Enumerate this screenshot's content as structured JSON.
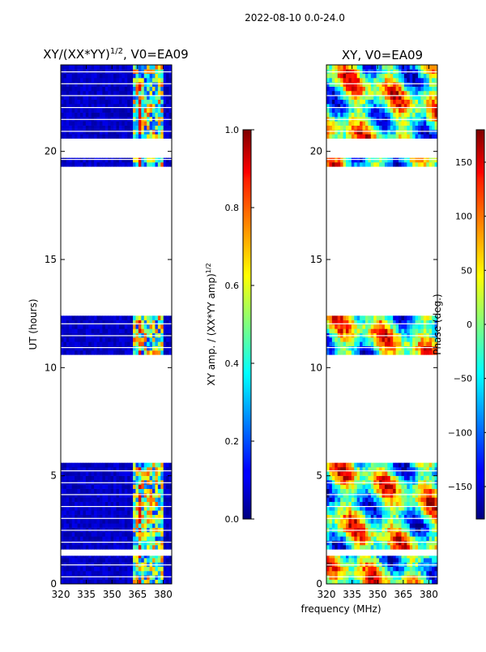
{
  "figure_title": "2022-08-10 0.0-24.0",
  "colors": {
    "empty_stripe": "#ffffff",
    "dark_blue": "#000080",
    "frame": "#000000"
  },
  "chart_data": [
    {
      "type": "heatmap",
      "name": "amplitude",
      "title": "XY/(XX*YY)",
      "title_exp": "1/2",
      "title_suffix": ", V0=EA09",
      "xlabel": "",
      "ylabel": "UT (hours)",
      "xlim": [
        320,
        385
      ],
      "ylim": [
        0,
        24
      ],
      "xticks": [
        "320",
        "335",
        "350",
        "365",
        "380"
      ],
      "xtick_values": [
        320,
        335,
        350,
        365,
        380
      ],
      "yticks": [
        "0",
        "5",
        "10",
        "15",
        "20"
      ],
      "ytick_values": [
        0,
        5,
        10,
        15,
        20
      ],
      "data_time_ranges_hours": [
        [
          0.0,
          1.3
        ],
        [
          1.6,
          5.6
        ],
        [
          10.6,
          12.4
        ],
        [
          19.3,
          19.7
        ],
        [
          20.6,
          24.0
        ]
      ],
      "colorbar": {
        "label": "XY amp. / (XX*YY amp)",
        "label_exp": "1/2",
        "range": [
          0.0,
          1.0
        ],
        "ticks": [
          "0.0",
          "0.2",
          "0.4",
          "0.6",
          "0.8",
          "1.0"
        ],
        "tick_values": [
          0.0,
          0.2,
          0.4,
          0.6,
          0.8,
          1.0
        ],
        "colormap": "jet"
      }
    },
    {
      "type": "heatmap",
      "name": "phase",
      "title": "XY, V0=EA09",
      "xlabel": "frequency (MHz)",
      "ylabel": "",
      "xlim": [
        320,
        385
      ],
      "ylim": [
        0,
        24
      ],
      "xticks": [
        "320",
        "335",
        "350",
        "365",
        "380"
      ],
      "xtick_values": [
        320,
        335,
        350,
        365,
        380
      ],
      "yticks": [
        "0",
        "5",
        "10",
        "15",
        "20"
      ],
      "ytick_values": [
        0,
        5,
        10,
        15,
        20
      ],
      "data_time_ranges_hours": [
        [
          0.0,
          1.3
        ],
        [
          1.6,
          5.6
        ],
        [
          10.6,
          12.4
        ],
        [
          19.3,
          19.7
        ],
        [
          20.6,
          24.0
        ]
      ],
      "colorbar": {
        "label": "Phase (deg.)",
        "range": [
          -180,
          180
        ],
        "ticks": [
          "−150",
          "−100",
          "−50",
          "0",
          "50",
          "100",
          "150"
        ],
        "tick_values": [
          -150,
          -100,
          -50,
          0,
          50,
          100,
          150
        ],
        "colormap": "jet"
      }
    }
  ]
}
